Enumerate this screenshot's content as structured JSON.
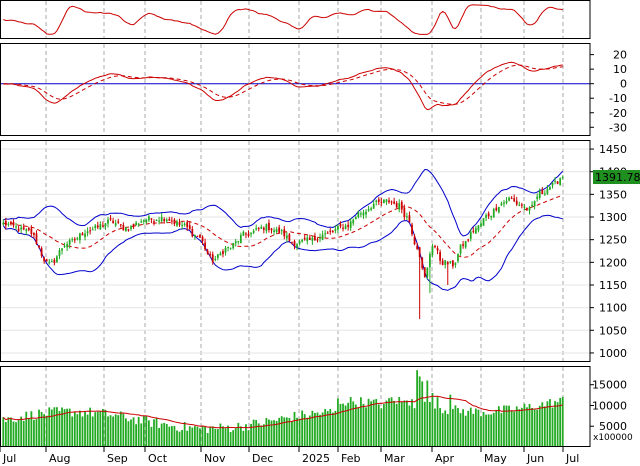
{
  "chart_data": {
    "type": "candlestick",
    "months": [
      "Jul",
      "Aug",
      "Sep",
      "Oct",
      "Nov",
      "Dec",
      "2025",
      "Feb",
      "Mar",
      "Apr",
      "May",
      "Jun",
      "Jul"
    ],
    "price": {
      "last_value_label": "1391.780",
      "yticks": [
        "1000",
        "1050",
        "1100",
        "1150",
        "1200",
        "1250",
        "1300",
        "1350",
        "1400",
        "1450"
      ],
      "ylim": [
        980,
        1470
      ],
      "anchors": [
        [
          0,
          1285
        ],
        [
          10,
          1268
        ],
        [
          18,
          1195
        ],
        [
          25,
          1242
        ],
        [
          34,
          1272
        ],
        [
          42,
          1290
        ],
        [
          48,
          1275
        ],
        [
          56,
          1295
        ],
        [
          63,
          1298
        ],
        [
          70,
          1282
        ],
        [
          76,
          1258
        ],
        [
          82,
          1205
        ],
        [
          88,
          1232
        ],
        [
          95,
          1262
        ],
        [
          103,
          1278
        ],
        [
          108,
          1268
        ],
        [
          114,
          1242
        ],
        [
          120,
          1248
        ],
        [
          126,
          1262
        ],
        [
          134,
          1280
        ],
        [
          140,
          1310
        ],
        [
          146,
          1330
        ],
        [
          151,
          1335
        ],
        [
          155,
          1325
        ],
        [
          158,
          1300
        ],
        [
          162,
          1235
        ],
        [
          165,
          1165
        ],
        [
          168,
          1240
        ],
        [
          172,
          1200
        ],
        [
          176,
          1195
        ],
        [
          180,
          1240
        ],
        [
          185,
          1275
        ],
        [
          190,
          1305
        ],
        [
          195,
          1330
        ],
        [
          198,
          1340
        ],
        [
          202,
          1328
        ],
        [
          206,
          1315
        ],
        [
          210,
          1352
        ],
        [
          215,
          1370
        ],
        [
          219,
          1390
        ]
      ],
      "extremes": [
        [
          163,
          1075
        ],
        [
          167,
          1132
        ],
        [
          174,
          1150
        ]
      ]
    },
    "volume": {
      "unit_label": "x100000",
      "yticks": [
        "5000",
        "10000",
        "15000"
      ],
      "ylim": [
        0,
        19500
      ],
      "spikes": [
        [
          162,
          18500
        ],
        [
          163,
          17000
        ],
        [
          164,
          15800
        ],
        [
          166,
          16000
        ],
        [
          168,
          13000
        ],
        [
          170,
          12000
        ],
        [
          175,
          12600
        ],
        [
          160,
          11500
        ]
      ]
    },
    "macd": {
      "yticks": [
        "-30",
        "-20",
        "-10",
        "0",
        "10",
        "20"
      ],
      "ylim": [
        -36,
        28
      ],
      "zero_line": 0
    },
    "rsi": {}
  },
  "colors": {
    "up": "#22aa22",
    "down": "#cc0000",
    "band": "#0000cc",
    "ma": "#cc0000",
    "grid": "#aaaaaa",
    "badge_bg": "#1f8f1f"
  }
}
